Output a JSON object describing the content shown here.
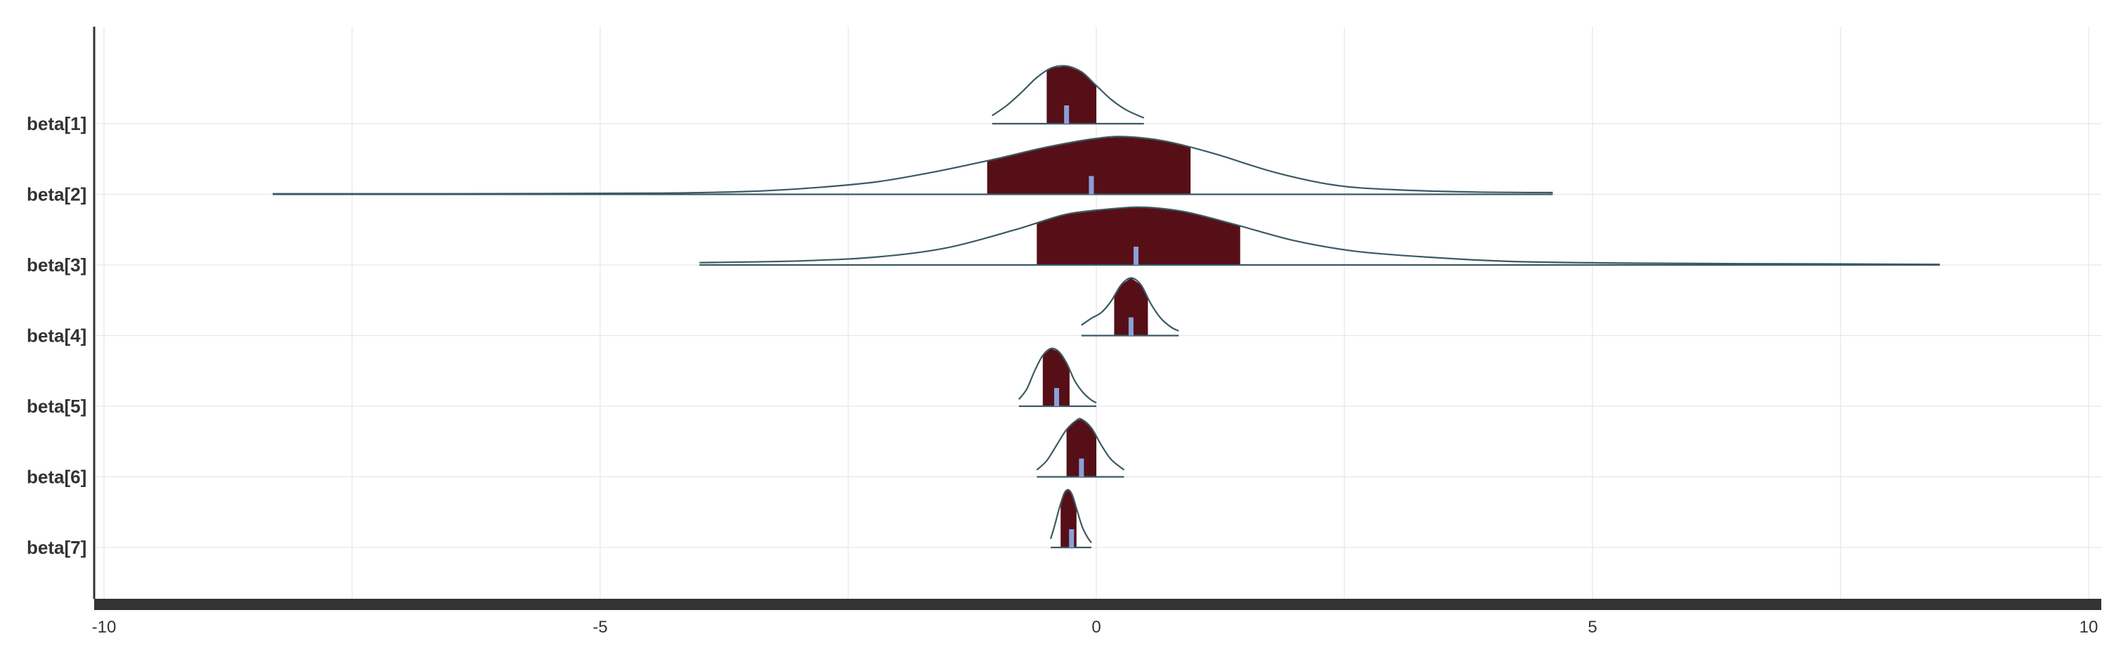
{
  "chart_data": {
    "type": "ridgeline",
    "title": "",
    "xlabel": "",
    "ylabel": "",
    "xlim": [
      -10,
      10
    ],
    "xticks": [
      -10,
      -5,
      0,
      5,
      10
    ],
    "xtick_labels": [
      "-10",
      "-5",
      "0",
      "5",
      "10"
    ],
    "grid": true,
    "legend": "none",
    "colors": {
      "interval_fill": "#560f17",
      "outline": "#3b5a63",
      "median": "#8aa0d8",
      "grid": "#e6e6e6",
      "axis": "#333333"
    },
    "series": [
      {
        "label": "beta[1]",
        "range": [
          -1.05,
          0.48
        ],
        "interval": [
          -0.5,
          0.0
        ],
        "median": -0.3,
        "density": [
          [
            -1.05,
            0.14
          ],
          [
            -0.9,
            0.32
          ],
          [
            -0.75,
            0.55
          ],
          [
            -0.6,
            0.8
          ],
          [
            -0.45,
            0.97
          ],
          [
            -0.3,
            1.0
          ],
          [
            -0.15,
            0.9
          ],
          [
            0.0,
            0.66
          ],
          [
            0.15,
            0.42
          ],
          [
            0.3,
            0.24
          ],
          [
            0.48,
            0.1
          ]
        ]
      },
      {
        "label": "beta[2]",
        "range": [
          -8.3,
          4.6
        ],
        "interval": [
          -1.1,
          0.95
        ],
        "median": -0.05,
        "density": [
          [
            -8.3,
            0.01
          ],
          [
            -6.5,
            0.01
          ],
          [
            -4.5,
            0.02
          ],
          [
            -3.5,
            0.05
          ],
          [
            -2.8,
            0.12
          ],
          [
            -2.2,
            0.22
          ],
          [
            -1.6,
            0.4
          ],
          [
            -1.0,
            0.62
          ],
          [
            -0.5,
            0.82
          ],
          [
            0.0,
            0.97
          ],
          [
            0.3,
            1.0
          ],
          [
            0.7,
            0.92
          ],
          [
            1.2,
            0.7
          ],
          [
            1.8,
            0.38
          ],
          [
            2.4,
            0.16
          ],
          [
            3.0,
            0.08
          ],
          [
            3.8,
            0.04
          ],
          [
            4.6,
            0.03
          ]
        ]
      },
      {
        "label": "beta[3]",
        "range": [
          -4.0,
          8.5
        ],
        "interval": [
          -0.6,
          1.45
        ],
        "median": 0.4,
        "density": [
          [
            -4.0,
            0.04
          ],
          [
            -3.0,
            0.07
          ],
          [
            -2.2,
            0.14
          ],
          [
            -1.5,
            0.3
          ],
          [
            -0.8,
            0.62
          ],
          [
            -0.3,
            0.88
          ],
          [
            0.2,
            0.98
          ],
          [
            0.5,
            1.0
          ],
          [
            0.9,
            0.92
          ],
          [
            1.4,
            0.7
          ],
          [
            2.0,
            0.42
          ],
          [
            2.6,
            0.24
          ],
          [
            3.3,
            0.14
          ],
          [
            4.2,
            0.06
          ],
          [
            5.5,
            0.03
          ],
          [
            7.0,
            0.02
          ],
          [
            8.5,
            0.01
          ]
        ]
      },
      {
        "label": "beta[4]",
        "range": [
          -0.15,
          0.83
        ],
        "interval": [
          0.18,
          0.52
        ],
        "median": 0.35,
        "density": [
          [
            -0.15,
            0.18
          ],
          [
            -0.05,
            0.3
          ],
          [
            0.05,
            0.4
          ],
          [
            0.15,
            0.6
          ],
          [
            0.25,
            0.88
          ],
          [
            0.35,
            1.0
          ],
          [
            0.45,
            0.88
          ],
          [
            0.55,
            0.55
          ],
          [
            0.65,
            0.3
          ],
          [
            0.75,
            0.15
          ],
          [
            0.83,
            0.08
          ]
        ]
      },
      {
        "label": "beta[5]",
        "range": [
          -0.78,
          0.0
        ],
        "interval": [
          -0.54,
          -0.27
        ],
        "median": -0.4,
        "density": [
          [
            -0.78,
            0.12
          ],
          [
            -0.7,
            0.3
          ],
          [
            -0.62,
            0.62
          ],
          [
            -0.54,
            0.88
          ],
          [
            -0.46,
            1.0
          ],
          [
            -0.38,
            0.95
          ],
          [
            -0.3,
            0.75
          ],
          [
            -0.22,
            0.45
          ],
          [
            -0.14,
            0.25
          ],
          [
            -0.06,
            0.12
          ],
          [
            0.0,
            0.06
          ]
        ]
      },
      {
        "label": "beta[6]",
        "range": [
          -0.6,
          0.28
        ],
        "interval": [
          -0.3,
          0.0
        ],
        "median": -0.15,
        "density": [
          [
            -0.6,
            0.12
          ],
          [
            -0.5,
            0.28
          ],
          [
            -0.4,
            0.55
          ],
          [
            -0.3,
            0.82
          ],
          [
            -0.2,
            0.98
          ],
          [
            -0.15,
            1.0
          ],
          [
            -0.05,
            0.85
          ],
          [
            0.05,
            0.55
          ],
          [
            0.15,
            0.3
          ],
          [
            0.28,
            0.12
          ]
        ]
      },
      {
        "label": "beta[7]",
        "range": [
          -0.46,
          -0.05
        ],
        "interval": [
          -0.36,
          -0.2
        ],
        "median": -0.25,
        "density": [
          [
            -0.46,
            0.15
          ],
          [
            -0.42,
            0.38
          ],
          [
            -0.37,
            0.7
          ],
          [
            -0.32,
            0.95
          ],
          [
            -0.28,
            1.0
          ],
          [
            -0.24,
            0.9
          ],
          [
            -0.19,
            0.62
          ],
          [
            -0.14,
            0.35
          ],
          [
            -0.09,
            0.18
          ],
          [
            -0.05,
            0.08
          ]
        ]
      }
    ]
  }
}
